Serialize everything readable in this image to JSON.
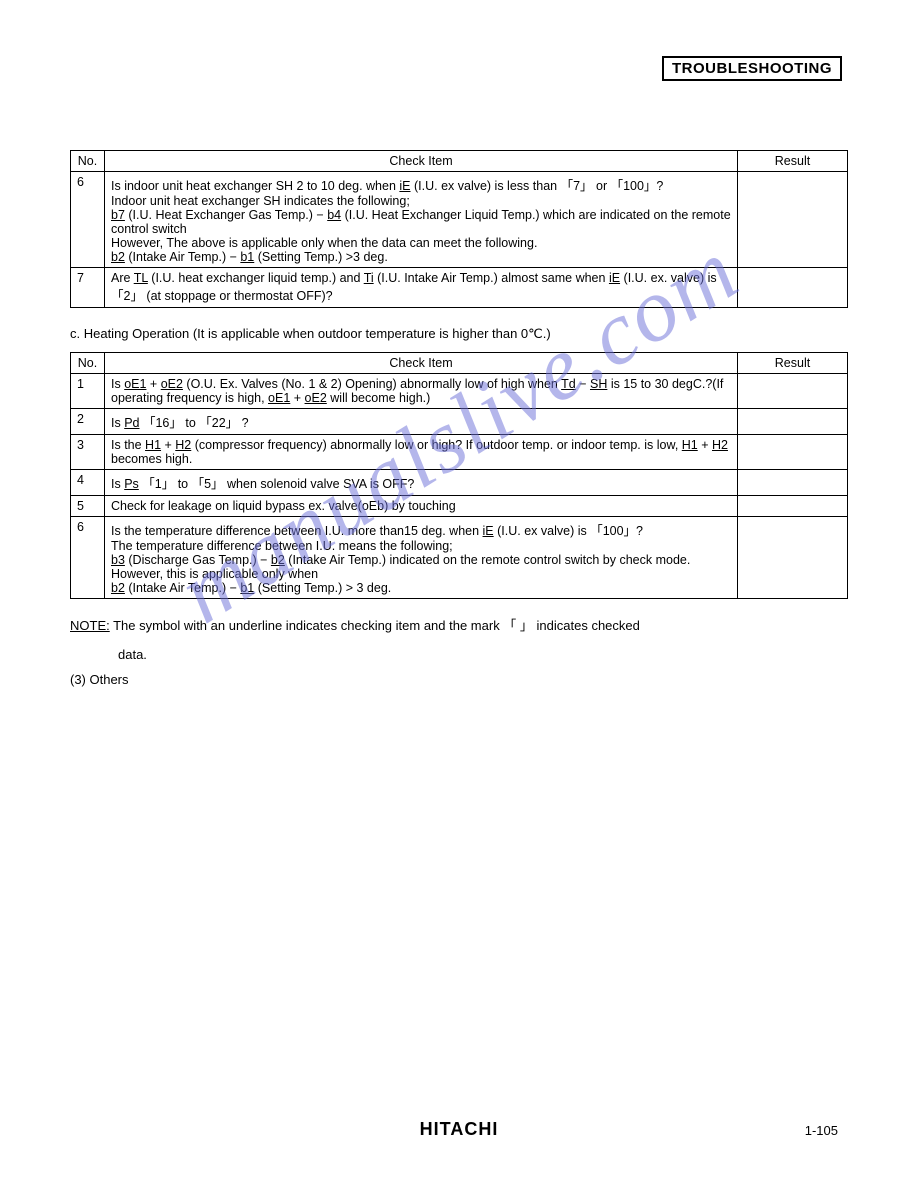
{
  "header": {
    "title": "TROUBLESHOOTING"
  },
  "table1": {
    "columns": {
      "no": "No.",
      "check": "Check Item",
      "result": "Result"
    },
    "rows": [
      {
        "no": "6",
        "check": "Is indoor unit heat exchanger SH 2 to 10 deg. when <span class='u'>iE</span> (I.U. ex valve) is less than 「7」 or 「100」?<br>Indoor unit heat exchanger SH indicates  the following;<br><span class='u'>b7</span> (I.U. Heat Exchanger Gas Temp.) − <span class='u'>b4</span> (I.U. Heat Exchanger Liquid Temp.) which are indicated on the remote control switch<br>However, The above is applicable only when the data can meet the following.<br><span class='u'>b2</span> (Intake Air Temp.) − <span class='u'>b1</span> (Setting Temp.) &gt;3 deg.",
        "result": ""
      },
      {
        "no": "7",
        "check": "Are <span class='u'>TL</span> (I.U. heat exchanger liquid temp.) and <span class='u'>Ti</span> (I.U. Intake Air Temp.) almost same when <span class='u'>iE</span> (I.U. ex. valve) is 「2」 (at stoppage or thermostat OFF)?",
        "result": ""
      }
    ]
  },
  "section_c": {
    "label": "c.   Heating Operation (It is applicable when outdoor temperature is higher than 0℃.)"
  },
  "table2": {
    "columns": {
      "no": "No.",
      "check": "Check Item",
      "result": "Result"
    },
    "rows": [
      {
        "no": "1",
        "check": "Is <span class='u'>oE1</span> + <span class='u'>oE2</span> (O.U. Ex. Valves (No. 1 &amp; 2) Opening) abnormally low of high when <span class='u'>Td</span> − <span class='u'>SH</span> is 15 to 30 degC.?(If  operating frequency is high, <span class='u'>oE1</span> + <span class='u'>oE2</span> will become high.)",
        "result": ""
      },
      {
        "no": "2",
        "check": "Is <span class='u'>Pd</span> 「16」 to 「22」 ?",
        "result": ""
      },
      {
        "no": "3",
        "check": "Is the <span class='u'>H1</span> + <span class='u'>H2</span> (compressor frequency) abnormally low or high?  If outdoor temp. or indoor temp. is low, <span class='u'>H1</span> + <span class='u'>H2</span> becomes high.",
        "result": ""
      },
      {
        "no": "4",
        "check": "Is <span class='u'>Ps</span> 「1」 to 「5」 when solenoid valve SVA is OFF?",
        "result": ""
      },
      {
        "no": "5",
        "check": "Check for leakage on liquid bypass ex. valve(oEb) by touching",
        "result": ""
      },
      {
        "no": "6",
        "check": "Is the temperature difference between I.U. more than15 deg. when <span class='u'>iE</span> (I.U. ex valve) is 「100」?<br>The temperature difference between I.U. means the following;<br><span class='u'>b3</span> (Discharge Gas Temp.) − <span class='u'>b2</span> (Intake Air Temp.) indicated on the remote control switch by check mode.  However, this is applicable only when<br><span class='u'>b2</span> (Intake Air Temp.) − <span class='u'>b1</span> (Setting Temp.) &gt; 3 deg.",
        "result": ""
      }
    ]
  },
  "note": {
    "line1_prefix": "NOTE:",
    "line1_rest": " The symbol with an underline        indicates checking item and the mark 「 」 indicates checked",
    "line2": "data."
  },
  "others": {
    "label": "(3)   Others"
  },
  "footer": {
    "brand": "HITACHI",
    "pageno": "1-105"
  },
  "watermark": {
    "text": "manualslive.com"
  },
  "style": {
    "text_color": "#000000",
    "background": "#ffffff",
    "watermark_color": "#6b6fd8",
    "font_size_body": 12.5,
    "font_size_header": 15,
    "font_size_brand": 18
  }
}
